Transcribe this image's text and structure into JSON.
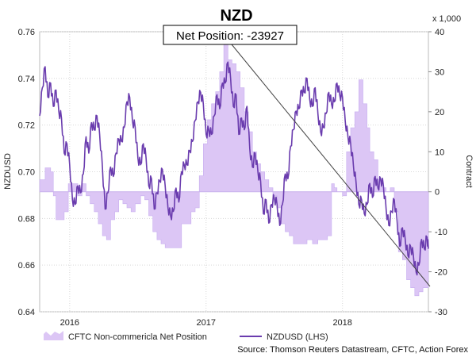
{
  "chart_data": {
    "type": "line",
    "title": "NZD",
    "left_axis_label": "NZDUSD",
    "right_axis_label": "Contract",
    "right_axis_multiplier": "x 1,000",
    "left_ylim": [
      0.64,
      0.76
    ],
    "left_ticks": [
      "0.64",
      "0.66",
      "0.68",
      "0.70",
      "0.72",
      "0.74",
      "0.76"
    ],
    "right_ylim": [
      -30,
      40
    ],
    "right_ticks": [
      "-30",
      "-20",
      "-10",
      "0",
      "10",
      "20",
      "30",
      "40"
    ],
    "x_range": [
      2015.78,
      2018.63
    ],
    "x_ticks": [
      {
        "label": "2016",
        "value": 2016.0
      },
      {
        "label": "2017",
        "value": 2017.0
      },
      {
        "label": "2018",
        "value": 2018.0
      }
    ],
    "annotation": "Net Position: -23927",
    "series": [
      {
        "name": "CFTC Non-commericla Net Position",
        "type": "area",
        "axis": "right",
        "color": "#dcc6f5",
        "points": [
          [
            2015.78,
            3
          ],
          [
            2015.82,
            6
          ],
          [
            2015.86,
            5
          ],
          [
            2015.88,
            -1
          ],
          [
            2015.9,
            -7
          ],
          [
            2015.93,
            -7
          ],
          [
            2015.96,
            -5
          ],
          [
            2015.99,
            2
          ],
          [
            2016.03,
            2
          ],
          [
            2016.06,
            -1
          ],
          [
            2016.09,
            2
          ],
          [
            2016.12,
            -1
          ],
          [
            2016.15,
            -3
          ],
          [
            2016.18,
            -5
          ],
          [
            2016.21,
            -8
          ],
          [
            2016.24,
            -11
          ],
          [
            2016.27,
            -12
          ],
          [
            2016.3,
            -7
          ],
          [
            2016.33,
            -5
          ],
          [
            2016.36,
            -2
          ],
          [
            2016.39,
            -3
          ],
          [
            2016.42,
            -4
          ],
          [
            2016.45,
            -5
          ],
          [
            2016.48,
            -3
          ],
          [
            2016.52,
            -1
          ],
          [
            2016.55,
            -2
          ],
          [
            2016.58,
            -6
          ],
          [
            2016.61,
            -10
          ],
          [
            2016.64,
            -12
          ],
          [
            2016.67,
            -13
          ],
          [
            2016.7,
            -14
          ],
          [
            2016.74,
            -14
          ],
          [
            2016.78,
            -14
          ],
          [
            2016.82,
            -8
          ],
          [
            2016.86,
            -8
          ],
          [
            2016.89,
            -5
          ],
          [
            2016.92,
            -4
          ],
          [
            2016.95,
            4
          ],
          [
            2016.98,
            12
          ],
          [
            2017.01,
            18
          ],
          [
            2017.04,
            22
          ],
          [
            2017.07,
            25
          ],
          [
            2017.1,
            30
          ],
          [
            2017.13,
            37
          ],
          [
            2017.16,
            33
          ],
          [
            2017.19,
            32
          ],
          [
            2017.22,
            30
          ],
          [
            2017.25,
            26
          ],
          [
            2017.28,
            20
          ],
          [
            2017.31,
            15
          ],
          [
            2017.34,
            10
          ],
          [
            2017.37,
            7
          ],
          [
            2017.4,
            5
          ],
          [
            2017.43,
            3
          ],
          [
            2017.46,
            1
          ],
          [
            2017.49,
            -1
          ],
          [
            2017.52,
            -4
          ],
          [
            2017.55,
            -8
          ],
          [
            2017.58,
            -10
          ],
          [
            2017.61,
            -11
          ],
          [
            2017.64,
            -13
          ],
          [
            2017.67,
            -13
          ],
          [
            2017.7,
            -13
          ],
          [
            2017.74,
            -12
          ],
          [
            2017.78,
            -13
          ],
          [
            2017.82,
            -12
          ],
          [
            2017.86,
            -12
          ],
          [
            2017.89,
            -11
          ],
          [
            2017.92,
            2
          ],
          [
            2017.94,
            1
          ],
          [
            2017.96,
            0
          ],
          [
            2018.0,
            -1
          ],
          [
            2018.03,
            10
          ],
          [
            2018.06,
            16
          ],
          [
            2018.09,
            20
          ],
          [
            2018.12,
            28
          ],
          [
            2018.15,
            22
          ],
          [
            2018.18,
            16
          ],
          [
            2018.2,
            10
          ],
          [
            2018.23,
            8
          ],
          [
            2018.26,
            3
          ],
          [
            2018.29,
            1
          ],
          [
            2018.32,
            0
          ],
          [
            2018.35,
            1
          ],
          [
            2018.38,
            -5
          ],
          [
            2018.41,
            -15
          ],
          [
            2018.44,
            -17
          ],
          [
            2018.47,
            -22
          ],
          [
            2018.5,
            -24
          ],
          [
            2018.53,
            -26
          ],
          [
            2018.56,
            -25
          ],
          [
            2018.59,
            -24
          ],
          [
            2018.63,
            -24
          ]
        ]
      },
      {
        "name": "NZDUSD (LHS)",
        "type": "line",
        "axis": "left",
        "color": "#6a3cae",
        "points": [
          [
            2015.78,
            0.724
          ],
          [
            2015.8,
            0.736
          ],
          [
            2015.82,
            0.745
          ],
          [
            2015.84,
            0.732
          ],
          [
            2015.86,
            0.738
          ],
          [
            2015.88,
            0.728
          ],
          [
            2015.9,
            0.735
          ],
          [
            2015.92,
            0.726
          ],
          [
            2015.94,
            0.723
          ],
          [
            2015.96,
            0.708
          ],
          [
            2015.98,
            0.712
          ],
          [
            2016.0,
            0.703
          ],
          [
            2016.02,
            0.688
          ],
          [
            2016.04,
            0.686
          ],
          [
            2016.06,
            0.694
          ],
          [
            2016.08,
            0.691
          ],
          [
            2016.1,
            0.699
          ],
          [
            2016.12,
            0.715
          ],
          [
            2016.14,
            0.708
          ],
          [
            2016.16,
            0.721
          ],
          [
            2016.18,
            0.718
          ],
          [
            2016.2,
            0.724
          ],
          [
            2016.22,
            0.716
          ],
          [
            2016.24,
            0.702
          ],
          [
            2016.26,
            0.684
          ],
          [
            2016.28,
            0.691
          ],
          [
            2016.3,
            0.702
          ],
          [
            2016.32,
            0.698
          ],
          [
            2016.34,
            0.708
          ],
          [
            2016.36,
            0.714
          ],
          [
            2016.38,
            0.713
          ],
          [
            2016.4,
            0.719
          ],
          [
            2016.42,
            0.73
          ],
          [
            2016.44,
            0.732
          ],
          [
            2016.46,
            0.722
          ],
          [
            2016.48,
            0.719
          ],
          [
            2016.5,
            0.706
          ],
          [
            2016.52,
            0.703
          ],
          [
            2016.54,
            0.712
          ],
          [
            2016.56,
            0.706
          ],
          [
            2016.58,
            0.694
          ],
          [
            2016.6,
            0.697
          ],
          [
            2016.62,
            0.684
          ],
          [
            2016.64,
            0.691
          ],
          [
            2016.66,
            0.696
          ],
          [
            2016.68,
            0.701
          ],
          [
            2016.7,
            0.694
          ],
          [
            2016.72,
            0.685
          ],
          [
            2016.74,
            0.681
          ],
          [
            2016.76,
            0.683
          ],
          [
            2016.78,
            0.693
          ],
          [
            2016.8,
            0.687
          ],
          [
            2016.82,
            0.7
          ],
          [
            2016.84,
            0.703
          ],
          [
            2016.86,
            0.703
          ],
          [
            2016.88,
            0.709
          ],
          [
            2016.9,
            0.713
          ],
          [
            2016.92,
            0.722
          ],
          [
            2016.94,
            0.73
          ],
          [
            2016.96,
            0.734
          ],
          [
            2016.98,
            0.729
          ],
          [
            2017.0,
            0.716
          ],
          [
            2017.02,
            0.718
          ],
          [
            2017.04,
            0.716
          ],
          [
            2017.06,
            0.724
          ],
          [
            2017.08,
            0.733
          ],
          [
            2017.1,
            0.727
          ],
          [
            2017.12,
            0.738
          ],
          [
            2017.14,
            0.738
          ],
          [
            2017.16,
            0.747
          ],
          [
            2017.18,
            0.74
          ],
          [
            2017.2,
            0.728
          ],
          [
            2017.22,
            0.733
          ],
          [
            2017.24,
            0.716
          ],
          [
            2017.26,
            0.723
          ],
          [
            2017.28,
            0.718
          ],
          [
            2017.3,
            0.728
          ],
          [
            2017.32,
            0.71
          ],
          [
            2017.34,
            0.702
          ],
          [
            2017.36,
            0.708
          ],
          [
            2017.38,
            0.7
          ],
          [
            2017.4,
            0.696
          ],
          [
            2017.42,
            0.682
          ],
          [
            2017.44,
            0.688
          ],
          [
            2017.46,
            0.678
          ],
          [
            2017.48,
            0.686
          ],
          [
            2017.5,
            0.689
          ],
          [
            2017.52,
            0.686
          ],
          [
            2017.54,
            0.677
          ],
          [
            2017.56,
            0.686
          ],
          [
            2017.58,
            0.699
          ],
          [
            2017.6,
            0.697
          ],
          [
            2017.62,
            0.711
          ],
          [
            2017.64,
            0.718
          ],
          [
            2017.66,
            0.726
          ],
          [
            2017.68,
            0.727
          ],
          [
            2017.7,
            0.735
          ],
          [
            2017.72,
            0.734
          ],
          [
            2017.74,
            0.74
          ],
          [
            2017.76,
            0.731
          ],
          [
            2017.78,
            0.728
          ],
          [
            2017.8,
            0.736
          ],
          [
            2017.82,
            0.725
          ],
          [
            2017.84,
            0.717
          ],
          [
            2017.86,
            0.719
          ],
          [
            2017.88,
            0.725
          ],
          [
            2017.9,
            0.734
          ],
          [
            2017.92,
            0.729
          ],
          [
            2017.94,
            0.73
          ],
          [
            2017.96,
            0.738
          ],
          [
            2017.98,
            0.733
          ],
          [
            2018.0,
            0.732
          ],
          [
            2018.02,
            0.722
          ],
          [
            2018.04,
            0.715
          ],
          [
            2018.06,
            0.712
          ],
          [
            2018.08,
            0.703
          ],
          [
            2018.1,
            0.695
          ],
          [
            2018.12,
            0.686
          ],
          [
            2018.14,
            0.688
          ],
          [
            2018.16,
            0.682
          ],
          [
            2018.18,
            0.686
          ],
          [
            2018.2,
            0.695
          ],
          [
            2018.22,
            0.689
          ],
          [
            2018.24,
            0.698
          ],
          [
            2018.26,
            0.693
          ],
          [
            2018.28,
            0.697
          ],
          [
            2018.3,
            0.694
          ],
          [
            2018.32,
            0.684
          ],
          [
            2018.34,
            0.677
          ],
          [
            2018.36,
            0.683
          ],
          [
            2018.38,
            0.688
          ],
          [
            2018.4,
            0.679
          ],
          [
            2018.42,
            0.668
          ],
          [
            2018.44,
            0.676
          ],
          [
            2018.46,
            0.671
          ],
          [
            2018.48,
            0.664
          ],
          [
            2018.5,
            0.668
          ],
          [
            2018.52,
            0.664
          ],
          [
            2018.54,
            0.657
          ],
          [
            2018.56,
            0.66
          ],
          [
            2018.58,
            0.671
          ],
          [
            2018.6,
            0.667
          ],
          [
            2018.62,
            0.672
          ],
          [
            2018.63,
            0.667
          ]
        ]
      }
    ]
  },
  "legend": {
    "area_label": "CFTC Non-commericla Net Position",
    "line_label": "NZDUSD (LHS)"
  },
  "source": "Source: Thomson Reuters Datastream, CFTC, Action Forex",
  "colors": {
    "background": "#ffffff",
    "plot_bg": "#ffffff",
    "area_fill": "#dcc6f5",
    "line": "#6a3cae",
    "grid": "#d8d8d8",
    "zero_line": "#c9b2ec"
  }
}
